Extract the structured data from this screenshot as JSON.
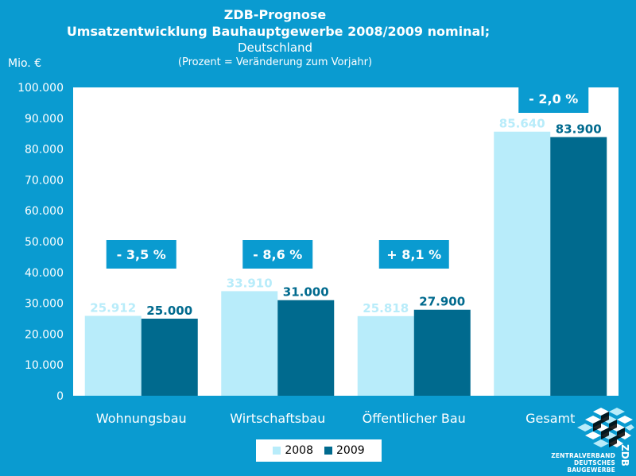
{
  "header": {
    "line1": "ZDB-Prognose",
    "line2": "Umsatzentwicklung Bauhauptgewerbe 2008/2009 nominal;",
    "line3": "Deutschland",
    "line4": "(Prozent = Veränderung zum Vorjahr)"
  },
  "unit_label": "Mio. €",
  "colors": {
    "background": "#0a9bd0",
    "plot_area": "#ffffff",
    "series_2008": "#b8ecfa",
    "series_2009": "#006a8e",
    "change_box": "#0a9bd0"
  },
  "chart_data": {
    "type": "bar",
    "title": "ZDB-Prognose Umsatzentwicklung Bauhauptgewerbe 2008/2009 nominal; Deutschland",
    "ylabel": "Mio. €",
    "xlabel": "",
    "ylim": [
      0,
      100000
    ],
    "yticks": [
      "0",
      "10.000",
      "20.000",
      "30.000",
      "40.000",
      "50.000",
      "60.000",
      "70.000",
      "80.000",
      "90.000",
      "100.000"
    ],
    "categories": [
      "Wohnungsbau",
      "Wirtschaftsbau",
      "Öffentlicher Bau",
      "Gesamt"
    ],
    "series": [
      {
        "name": "2008",
        "values": [
          25912,
          33910,
          25818,
          85640
        ],
        "labels": [
          "25.912",
          "33.910",
          "25.818",
          "85.640"
        ]
      },
      {
        "name": "2009",
        "values": [
          25000,
          31000,
          27900,
          83900
        ],
        "labels": [
          "25.000",
          "31.000",
          "27.900",
          "83.900"
        ]
      }
    ],
    "changes": [
      "- 3,5 %",
      "- 8,6 %",
      "+ 8,1 %",
      "- 2,0 %"
    ],
    "grid": false,
    "legend": "bottom-center"
  },
  "logo": {
    "line1": "ZENTRALVERBAND",
    "line2": "DEUTSCHES",
    "line3": "BAUGEWERBE",
    "abbr": "ZDB"
  }
}
